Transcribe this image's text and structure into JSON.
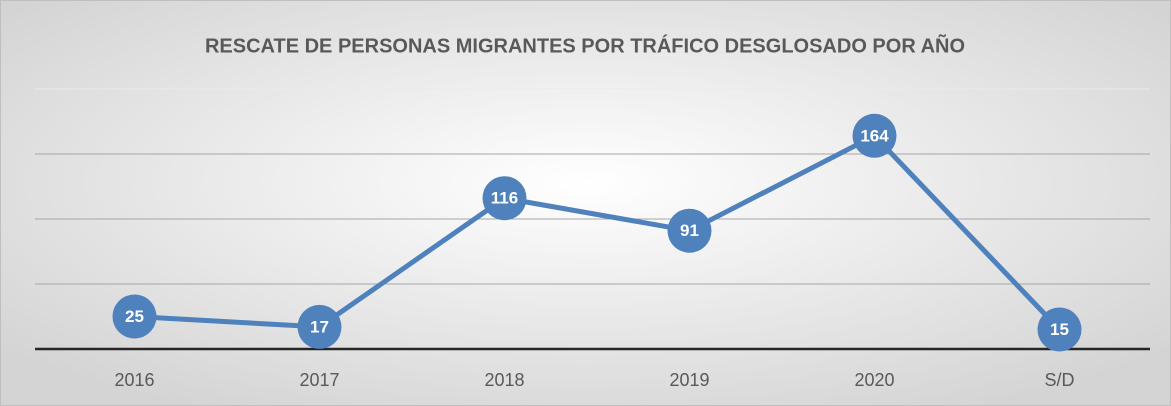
{
  "chart_data": {
    "type": "line",
    "title": "RESCATE DE PERSONAS MIGRANTES POR TRÁFICO DESGLOSADO POR AÑO",
    "categories": [
      "2016",
      "2017",
      "2018",
      "2019",
      "2020",
      "S/D"
    ],
    "values": [
      25,
      17,
      116,
      91,
      164,
      15
    ],
    "color": "#4f81bd",
    "ylim": [
      0,
      200
    ],
    "yticks": [
      0,
      50,
      100,
      150,
      200
    ],
    "grid": true
  }
}
